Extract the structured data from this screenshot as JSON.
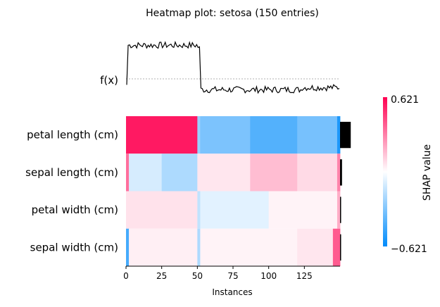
{
  "chart_data": {
    "type": "heatmap",
    "title": "Heatmap plot: setosa (150 entries)",
    "xlabel": "Instances",
    "fx_label": "f(x)",
    "x_ticks": [
      0,
      25,
      50,
      75,
      100,
      125
    ],
    "n_instances": 150,
    "features": [
      {
        "name": "petal length (cm)",
        "importance": 0.27
      },
      {
        "name": "sepal length (cm)",
        "importance": 0.05
      },
      {
        "name": "petal width (cm)",
        "importance": 0.02
      },
      {
        "name": "sepal width (cm)",
        "importance": 0.01
      }
    ],
    "shap_segments": [
      [
        {
          "from": 0,
          "to": 50,
          "value": 0.56
        },
        {
          "from": 50,
          "to": 52,
          "value": -0.25
        },
        {
          "from": 52,
          "to": 87,
          "value": -0.32
        },
        {
          "from": 87,
          "to": 120,
          "value": -0.42
        },
        {
          "from": 120,
          "to": 148,
          "value": -0.33
        },
        {
          "from": 148,
          "to": 150,
          "value": -0.55
        }
      ],
      [
        {
          "from": 0,
          "to": 2,
          "value": 0.35
        },
        {
          "from": 2,
          "to": 25,
          "value": -0.1
        },
        {
          "from": 25,
          "to": 50,
          "value": -0.2
        },
        {
          "from": 50,
          "to": 87,
          "value": 0.06
        },
        {
          "from": 87,
          "to": 120,
          "value": 0.16
        },
        {
          "from": 120,
          "to": 148,
          "value": 0.09
        },
        {
          "from": 148,
          "to": 150,
          "value": 0.3
        }
      ],
      [
        {
          "from": 0,
          "to": 50,
          "value": 0.07
        },
        {
          "from": 50,
          "to": 52,
          "value": -0.15
        },
        {
          "from": 52,
          "to": 100,
          "value": -0.07
        },
        {
          "from": 100,
          "to": 148,
          "value": 0.03
        },
        {
          "from": 148,
          "to": 150,
          "value": 0.2
        }
      ],
      [
        {
          "from": 0,
          "to": 2,
          "value": -0.45
        },
        {
          "from": 2,
          "to": 50,
          "value": 0.04
        },
        {
          "from": 50,
          "to": 52,
          "value": -0.2
        },
        {
          "from": 52,
          "to": 120,
          "value": 0.03
        },
        {
          "from": 120,
          "to": 145,
          "value": 0.06
        },
        {
          "from": 145,
          "to": 150,
          "value": 0.4
        }
      ]
    ],
    "fx_segments": [
      {
        "from": 0,
        "to": 1,
        "value": 0.15
      },
      {
        "from": 1,
        "to": 50,
        "value": 0.88
      },
      {
        "from": 50,
        "to": 52,
        "value": 0.85
      },
      {
        "from": 52,
        "to": 123,
        "value": 0.06
      },
      {
        "from": 123,
        "to": 150,
        "value": 0.1
      }
    ],
    "colorbar": {
      "label": "SHAP value",
      "max_label": "0.621",
      "min_label": "−0.621",
      "min": -0.621,
      "max": 0.621
    },
    "colors": {
      "positive": "#ff0051",
      "neutral": "#ffffff",
      "negative": "#008bfb",
      "fx_line": "#000000",
      "baseline": "#999999",
      "importance_bar": "#000000"
    }
  }
}
